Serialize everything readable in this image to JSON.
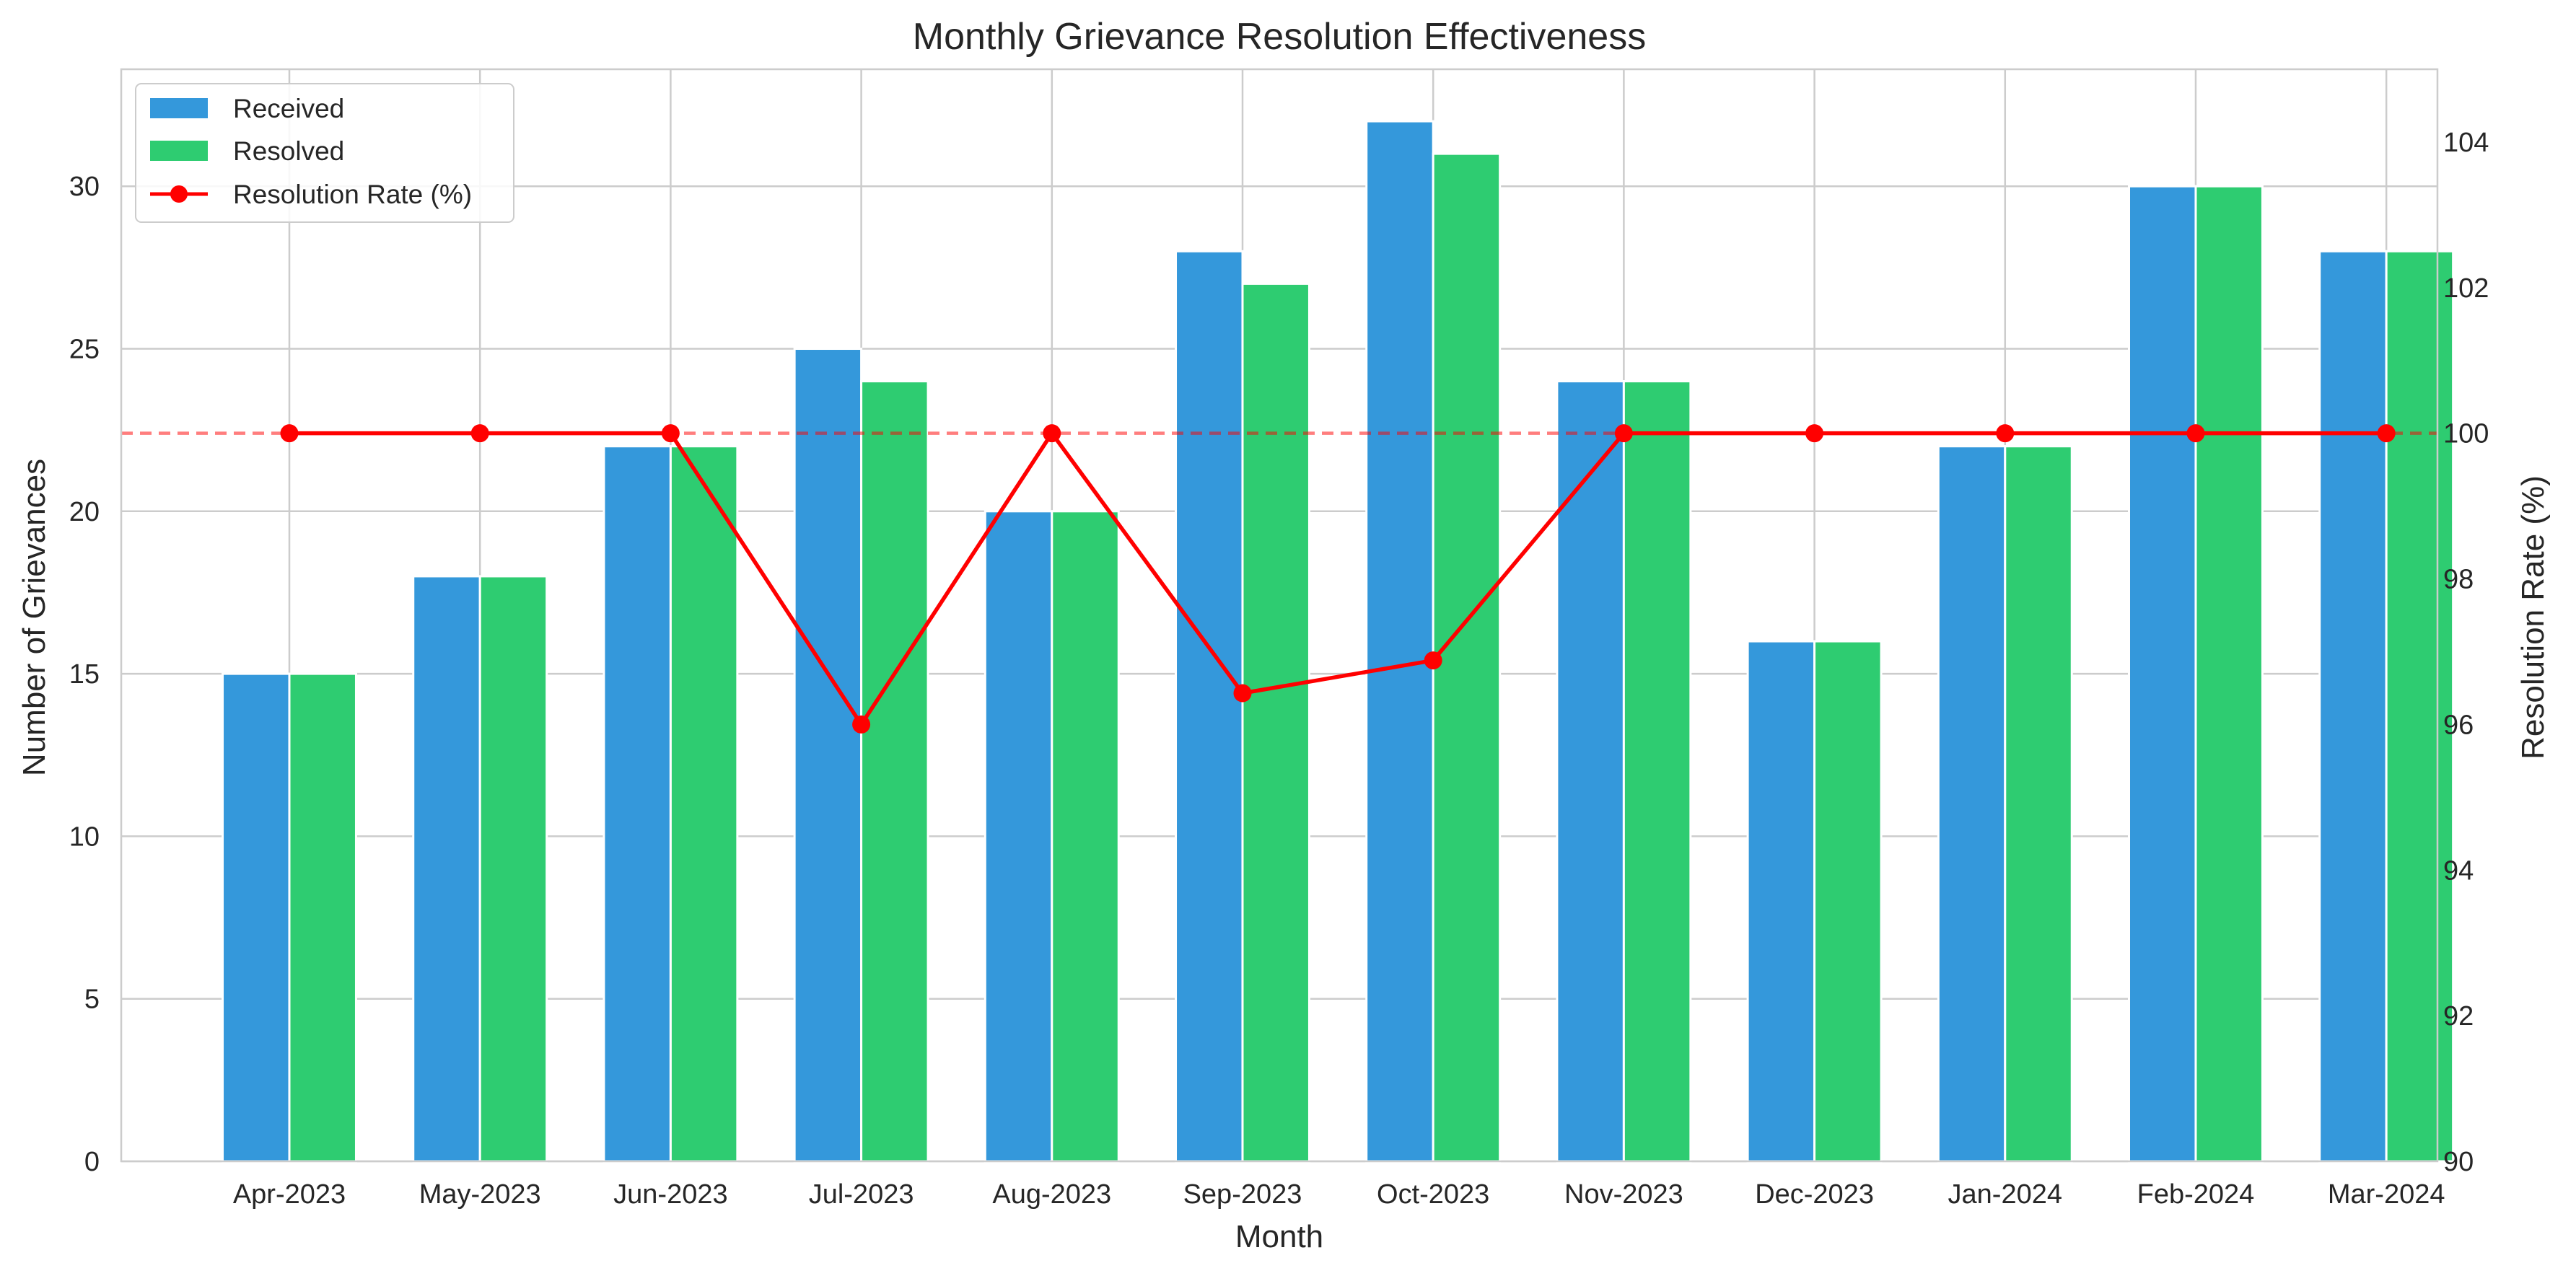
{
  "chart_data": {
    "type": "bar",
    "title": "Monthly Grievance Resolution Effectiveness",
    "xlabel": "Month",
    "ylabel": "Number of Grievances",
    "y2label": "Resolution Rate (%)",
    "categories": [
      "Apr-2023",
      "May-2023",
      "Jun-2023",
      "Jul-2023",
      "Aug-2023",
      "Sep-2023",
      "Oct-2023",
      "Nov-2023",
      "Dec-2023",
      "Jan-2024",
      "Feb-2024",
      "Mar-2024"
    ],
    "series": [
      {
        "name": "Received",
        "type": "bar",
        "axis": "left",
        "color": "#3498db",
        "values": [
          15,
          18,
          22,
          25,
          20,
          28,
          32,
          24,
          16,
          22,
          30,
          28
        ]
      },
      {
        "name": "Resolved",
        "type": "bar",
        "axis": "left",
        "color": "#2ecc71",
        "values": [
          15,
          18,
          22,
          24,
          20,
          27,
          31,
          24,
          16,
          22,
          30,
          28
        ]
      },
      {
        "name": "Resolution Rate (%)",
        "type": "line",
        "axis": "right",
        "color": "#ff0000",
        "marker": "circle",
        "values": [
          100,
          100,
          100,
          96,
          100,
          96.43,
          96.88,
          100,
          100,
          100,
          100,
          100
        ]
      }
    ],
    "ylim": [
      0,
      33.6
    ],
    "y2lim": [
      90,
      105
    ],
    "yticks": [
      0,
      5,
      10,
      15,
      20,
      25,
      30
    ],
    "y2ticks": [
      90,
      92,
      94,
      96,
      98,
      100,
      102,
      104
    ],
    "reference_line": {
      "axis": "right",
      "value": 100,
      "style": "dashed",
      "color": "#ff0000"
    },
    "grid": true,
    "legend_position": "top-left"
  }
}
